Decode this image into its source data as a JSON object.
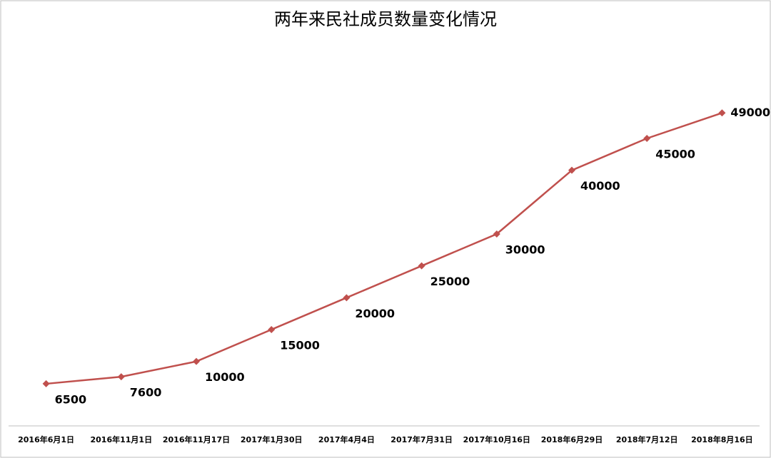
{
  "chart_data": {
    "type": "line",
    "title": "两年来民社成员数量变化情况",
    "categories": [
      "2016年6月1日",
      "2016年11月1日",
      "2016年11月17日",
      "2017年1月30日",
      "2017年4月4日",
      "2017年7月31日",
      "2017年10月16日",
      "2018年6月29日",
      "2018年7月12日",
      "2018年8月16日"
    ],
    "values": [
      6500,
      7600,
      10000,
      15000,
      20000,
      25000,
      30000,
      40000,
      45000,
      49000
    ],
    "color": "#c0504d",
    "ylim": [
      0,
      60000
    ]
  }
}
